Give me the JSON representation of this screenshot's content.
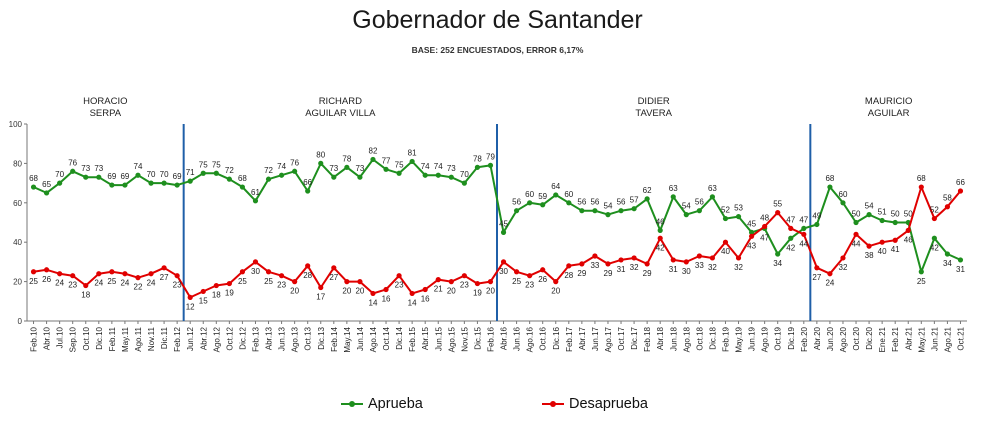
{
  "title": "Gobernador de Santander",
  "subtitle": "BASE: 252 ENCUESTADOS, ERROR 6,17%",
  "chart_data": {
    "type": "line",
    "title": "Gobernador de Santander",
    "subtitle": "BASE: 252 ENCUESTADOS, ERROR 6,17%",
    "xlabel": "",
    "ylabel": "",
    "ylim": [
      0,
      100
    ],
    "yticks": [
      0,
      20,
      40,
      60,
      80,
      100
    ],
    "grid": false,
    "legend": "bottom",
    "categories": [
      "Feb.10",
      "Abr.10",
      "Jul.10",
      "Sep.10",
      "Oct.10",
      "Dic.10",
      "Feb.11",
      "May.11",
      "Ago.11",
      "Nov.11",
      "Dic.11",
      "Feb.12",
      "Jun.12",
      "Abr.12",
      "Ago.12",
      "Oct.12",
      "Dic.12",
      "Feb.13",
      "Abr.13",
      "Jun.13",
      "Ago.13",
      "Oct.13",
      "Dic.13",
      "Feb.14",
      "May.14",
      "Jun.14",
      "Ago.14",
      "Oct.14",
      "Dic.14",
      "Feb.15",
      "Abr.15",
      "Jun.15",
      "Ago.15",
      "Nov.15",
      "Dic.15",
      "Feb.16",
      "Abr.16",
      "Jun.16",
      "Ago.16",
      "Oct.16",
      "Dic.16",
      "Feb.17",
      "Abr.17",
      "Jun.17",
      "Ago.17",
      "Oct.17",
      "Dic.17",
      "Feb.18",
      "Abr.18",
      "Jun.18",
      "Ago.18",
      "Oct.18",
      "Dic.18",
      "Feb.19",
      "May.19",
      "Jun.19",
      "Ago.19",
      "Oct.19",
      "Dic.19",
      "Feb.20",
      "Abr.20",
      "Jun.20",
      "Ago.20",
      "Oct.20",
      "Dic.20",
      "Ene.21",
      "Feb.21",
      "Abr.21",
      "May.21",
      "Jun.21",
      "Ago.21",
      "Oct.21"
    ],
    "series": [
      {
        "name": "Aprueba",
        "color": "#1e8f1e",
        "values": [
          68,
          65,
          70,
          76,
          73,
          73,
          69,
          69,
          74,
          70,
          70,
          69,
          71,
          75,
          75,
          72,
          68,
          61,
          72,
          74,
          76,
          66,
          80,
          73,
          78,
          73,
          82,
          77,
          75,
          81,
          74,
          74,
          73,
          70,
          78,
          79,
          45,
          56,
          60,
          59,
          64,
          60,
          56,
          56,
          54,
          56,
          57,
          62,
          46,
          63,
          54,
          56,
          63,
          52,
          53,
          45,
          47,
          34,
          42,
          47,
          49,
          68,
          60,
          50,
          54,
          51,
          50,
          50,
          25,
          42,
          34,
          31
        ]
      },
      {
        "name": "Desaprueba",
        "color": "#e00000",
        "values": [
          25,
          26,
          24,
          23,
          18,
          24,
          25,
          24,
          22,
          24,
          27,
          23,
          12,
          15,
          18,
          19,
          25,
          30,
          25,
          23,
          20,
          28,
          17,
          27,
          20,
          20,
          14,
          16,
          23,
          14,
          16,
          21,
          20,
          23,
          19,
          20,
          30,
          25,
          23,
          26,
          20,
          28,
          29,
          33,
          29,
          31,
          32,
          29,
          42,
          31,
          30,
          33,
          32,
          40,
          32,
          43,
          48,
          55,
          47,
          44,
          27,
          24,
          32,
          44,
          38,
          40,
          41,
          46,
          68,
          52,
          58,
          66
        ]
      }
    ],
    "data_labels": {
      "Aprueba": [
        "68",
        "65",
        "70",
        "76",
        "73",
        "73",
        "69",
        "69",
        "74",
        "70",
        "70",
        "69",
        "71",
        "75",
        "75",
        "72",
        "68",
        "61",
        "72",
        "74",
        "76",
        "66",
        "80",
        "73",
        "78",
        "73",
        "82",
        "77",
        "75",
        "81",
        "74",
        "74",
        "73",
        "70",
        "78",
        "79",
        "45",
        "56",
        "60",
        "59",
        "64",
        "60",
        "56",
        "56",
        "54",
        "56",
        "57",
        "62",
        "46",
        "63",
        "54",
        "56",
        "63",
        "52",
        "53",
        "45",
        "47",
        "34",
        "42",
        "47",
        "49",
        "68",
        "60",
        "50",
        "54",
        "51",
        "50",
        "50",
        "25",
        "42",
        "34",
        "31"
      ],
      "Desaprueba": [
        "25",
        "26",
        "24",
        "23",
        "18",
        "24",
        "25",
        "24",
        "22",
        "24",
        "27",
        "23",
        "12",
        "15",
        "18",
        "19",
        "25",
        "30",
        "25",
        "23",
        "20",
        "28",
        "17",
        "27",
        "20",
        "20",
        "14",
        "16",
        "23",
        "14",
        "16",
        "21",
        "20",
        "23",
        "19",
        "20",
        "30",
        "25",
        "23",
        "26",
        "20",
        "28",
        "29",
        "33",
        "29",
        "31",
        "32",
        "29",
        "42",
        "31",
        "30",
        "33",
        "32",
        "40",
        "32",
        "43",
        "48",
        "55",
        "47",
        "44",
        "27",
        "24",
        "32",
        "44",
        "38",
        "40",
        "41",
        "46",
        "68",
        "52",
        "58",
        "66"
      ]
    },
    "periods": [
      {
        "label_line1": "HORACIO",
        "label_line2": "SERPA",
        "start_index": 0,
        "end_index": 11
      },
      {
        "label_line1": "RICHARD",
        "label_line2": "AGUILAR VILLA",
        "start_index": 12,
        "end_index": 35
      },
      {
        "label_line1": "DIDIER",
        "label_line2": "TAVERA",
        "start_index": 36,
        "end_index": 59
      },
      {
        "label_line1": "MAURICIO",
        "label_line2": "AGUILAR",
        "start_index": 60,
        "end_index": 71
      }
    ],
    "divider_color": "#1f5fa8"
  },
  "legend": {
    "aprueba": "Aprueba",
    "desaprueba": "Desaprueba"
  }
}
